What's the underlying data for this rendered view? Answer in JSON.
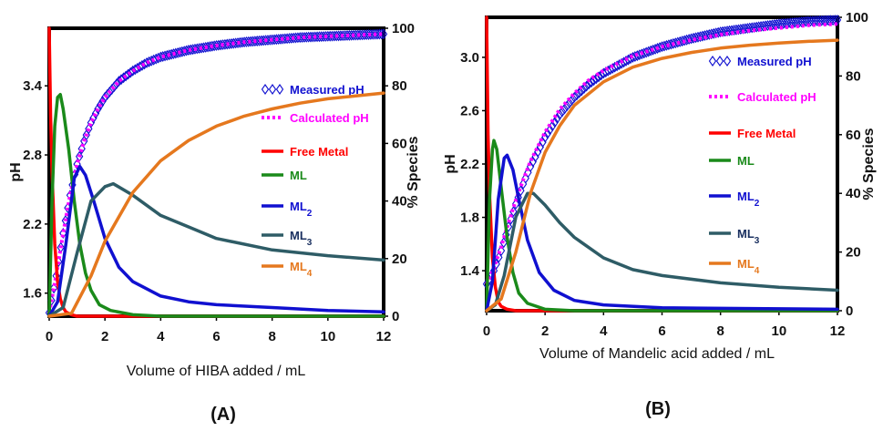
{
  "chart_data": [
    {
      "type": "line",
      "panel_label": "(A)",
      "xlabel": "Volume of HIBA added / mL",
      "ylabel_left": "pH",
      "ylabel_right": "% Species",
      "xlim": [
        0,
        12
      ],
      "xticks": [
        "0",
        "2",
        "4",
        "6",
        "8",
        "10",
        "12"
      ],
      "ylim_left": [
        1.4,
        3.9
      ],
      "yticks_left": [
        "1.6",
        "2.2",
        "2.8",
        "3.4"
      ],
      "ylim_right": [
        0,
        100
      ],
      "yticks_right": [
        "0",
        "20",
        "40",
        "60",
        "80",
        "100"
      ],
      "legend_position": "right",
      "series": [
        {
          "name": "Measured pH",
          "label_main": "Measured pH",
          "axis": "left",
          "style": "diamond-markers",
          "color": "#1010d0",
          "label_color": "#1010d0",
          "x": [
            0,
            0.25,
            0.5,
            0.75,
            1,
            1.25,
            1.5,
            1.75,
            2,
            2.5,
            3,
            3.5,
            4,
            5,
            6,
            7,
            8,
            9,
            10,
            11,
            12
          ],
          "y": [
            1.43,
            1.75,
            2.12,
            2.45,
            2.72,
            2.92,
            3.08,
            3.2,
            3.3,
            3.44,
            3.53,
            3.6,
            3.65,
            3.71,
            3.75,
            3.78,
            3.8,
            3.82,
            3.83,
            3.84,
            3.85
          ]
        },
        {
          "name": "Calculated pH",
          "label_main": "Calculated pH",
          "axis": "left",
          "style": "dotted",
          "color": "#ff00ff",
          "label_color": "#ff00ff",
          "x": [
            0,
            0.25,
            0.5,
            0.75,
            1,
            1.25,
            1.5,
            1.75,
            2,
            2.5,
            3,
            3.5,
            4,
            5,
            6,
            7,
            8,
            9,
            10,
            11,
            12
          ],
          "y": [
            1.43,
            1.75,
            2.12,
            2.45,
            2.72,
            2.92,
            3.08,
            3.2,
            3.3,
            3.44,
            3.53,
            3.6,
            3.65,
            3.71,
            3.75,
            3.78,
            3.8,
            3.82,
            3.83,
            3.84,
            3.85
          ]
        },
        {
          "name": "Free Metal",
          "label_main": "Free Metal",
          "axis": "right",
          "style": "line",
          "color": "#ff0000",
          "label_color": "#ff0000",
          "x": [
            0,
            0.05,
            0.1,
            0.2,
            0.3,
            0.4,
            0.5,
            0.6,
            0.8,
            1,
            12
          ],
          "y": [
            100,
            70,
            50,
            25,
            12,
            6,
            3,
            1.5,
            0.5,
            0,
            0
          ]
        },
        {
          "name": "ML",
          "label_main": "ML",
          "axis": "right",
          "style": "line",
          "color": "#1a8a1a",
          "label_color": "#1a8a1a",
          "x": [
            0,
            0.1,
            0.2,
            0.3,
            0.4,
            0.5,
            0.7,
            0.9,
            1.1,
            1.3,
            1.5,
            1.8,
            2.2,
            3,
            4,
            12
          ],
          "y": [
            0,
            40,
            66,
            76,
            77,
            72,
            58,
            40,
            25,
            15,
            9,
            4,
            2,
            0.5,
            0,
            0
          ]
        },
        {
          "name": "ML2",
          "label_main": "ML",
          "label_sub": "2",
          "axis": "right",
          "style": "line",
          "color": "#1010d0",
          "label_color": "#1010d0",
          "x": [
            0,
            0.3,
            0.6,
            0.9,
            1.1,
            1.3,
            1.6,
            2,
            2.5,
            3,
            4,
            5,
            6,
            8,
            10,
            12
          ],
          "y": [
            0,
            5,
            25,
            48,
            52,
            49,
            40,
            27,
            17,
            12,
            7,
            5,
            4,
            3,
            2,
            1.5
          ]
        },
        {
          "name": "ML3",
          "label_main": "ML",
          "label_sub": "3",
          "axis": "right",
          "style": "line",
          "color": "#2e5c66",
          "label_color": "#1a3060",
          "x": [
            0,
            0.5,
            1,
            1.5,
            2,
            2.3,
            3,
            4,
            5,
            6,
            8,
            10,
            12
          ],
          "y": [
            0,
            3,
            22,
            40,
            45,
            46,
            42,
            35,
            31,
            27,
            23,
            21,
            19.5
          ]
        },
        {
          "name": "ML4",
          "label_main": "ML",
          "label_sub": "4",
          "axis": "right",
          "style": "line",
          "color": "#e5781e",
          "label_color": "#e5781e",
          "x": [
            0,
            0.8,
            1.5,
            2,
            3,
            4,
            5,
            6,
            7,
            8,
            9,
            10,
            11,
            12
          ],
          "y": [
            0,
            1,
            14,
            26,
            43,
            54,
            61,
            66,
            69.5,
            72,
            74,
            75.5,
            76.5,
            77.5
          ]
        }
      ]
    },
    {
      "type": "line",
      "panel_label": "(B)",
      "xlabel": "Volume of Mandelic acid added / mL",
      "ylabel_left": "pH",
      "ylabel_right": "% Species",
      "xlim": [
        0,
        12
      ],
      "xticks": [
        "0",
        "2",
        "4",
        "6",
        "8",
        "10",
        "12"
      ],
      "ylim_left": [
        1.1,
        3.3
      ],
      "yticks_left": [
        "1.4",
        "1.8",
        "2.2",
        "2.6",
        "3.0"
      ],
      "ylim_right": [
        0,
        100
      ],
      "yticks_right": [
        "0",
        "20",
        "40",
        "60",
        "80",
        "100"
      ],
      "legend_position": "right",
      "series": [
        {
          "name": "Measured pH",
          "label_main": "Measured pH",
          "axis": "left",
          "style": "diamond-markers",
          "color": "#1010d0",
          "label_color": "#1010d0",
          "x": [
            0,
            0.25,
            0.5,
            0.75,
            1,
            1.25,
            1.5,
            2,
            2.5,
            3,
            3.5,
            4,
            5,
            6,
            7,
            8,
            9,
            10,
            11,
            12
          ],
          "y": [
            1.3,
            1.4,
            1.55,
            1.73,
            1.9,
            2.05,
            2.18,
            2.4,
            2.57,
            2.7,
            2.8,
            2.88,
            3.0,
            3.08,
            3.14,
            3.19,
            3.22,
            3.25,
            3.27,
            3.28
          ]
        },
        {
          "name": "Calculated pH",
          "label_main": "Calculated pH",
          "axis": "left",
          "style": "dotted",
          "color": "#ff00ff",
          "label_color": "#ff00ff",
          "x": [
            0,
            0.25,
            0.5,
            0.75,
            1,
            1.25,
            1.5,
            2,
            2.5,
            3,
            3.5,
            4,
            5,
            6,
            7,
            8,
            9,
            10,
            11,
            12
          ],
          "y": [
            1.3,
            1.42,
            1.58,
            1.76,
            1.93,
            2.08,
            2.22,
            2.44,
            2.61,
            2.73,
            2.83,
            2.9,
            3.01,
            3.08,
            3.13,
            3.17,
            3.2,
            3.22,
            3.24,
            3.25
          ]
        },
        {
          "name": "Free Metal",
          "label_main": "Free Metal",
          "axis": "right",
          "style": "line",
          "color": "#ff0000",
          "label_color": "#ff0000",
          "x": [
            0,
            0.05,
            0.1,
            0.2,
            0.3,
            0.4,
            0.5,
            0.7,
            1,
            12
          ],
          "y": [
            100,
            60,
            40,
            18,
            8,
            3,
            1.5,
            0.5,
            0,
            0
          ]
        },
        {
          "name": "ML",
          "label_main": "ML",
          "axis": "right",
          "style": "line",
          "color": "#1a8a1a",
          "label_color": "#1a8a1a",
          "x": [
            0,
            0.1,
            0.2,
            0.25,
            0.35,
            0.5,
            0.7,
            0.9,
            1.1,
            1.4,
            2,
            3,
            12
          ],
          "y": [
            0,
            38,
            55,
            58,
            55,
            42,
            25,
            13,
            6,
            2.5,
            0.5,
            0,
            0
          ]
        },
        {
          "name": "ML2",
          "label_main": "ML",
          "label_sub": "2",
          "axis": "right",
          "style": "line",
          "color": "#1010d0",
          "label_color": "#1010d0",
          "x": [
            0,
            0.2,
            0.4,
            0.6,
            0.7,
            0.9,
            1.1,
            1.4,
            1.8,
            2.3,
            3,
            4,
            6,
            12
          ],
          "y": [
            0,
            10,
            38,
            52,
            53,
            48,
            38,
            24,
            13,
            7,
            3.5,
            2,
            1,
            0.5
          ]
        },
        {
          "name": "ML3",
          "label_main": "ML",
          "label_sub": "3",
          "axis": "right",
          "style": "line",
          "color": "#2e5c66",
          "label_color": "#1a3060",
          "x": [
            0,
            0.3,
            0.6,
            1,
            1.4,
            1.6,
            2,
            2.5,
            3,
            4,
            5,
            6,
            8,
            10,
            12
          ],
          "y": [
            0,
            2,
            12,
            32,
            40,
            40,
            36,
            30,
            25,
            18,
            14,
            12,
            9.5,
            8,
            7
          ]
        },
        {
          "name": "ML4",
          "label_main": "ML",
          "label_sub": "4",
          "axis": "right",
          "style": "line",
          "color": "#e5781e",
          "label_color": "#e5781e",
          "x": [
            0,
            0.5,
            1,
            1.5,
            2,
            2.5,
            3,
            4,
            5,
            6,
            7,
            8,
            9,
            10,
            11,
            12
          ],
          "y": [
            0,
            4,
            20,
            40,
            54,
            63,
            70,
            78,
            83,
            86,
            88,
            89.5,
            90.5,
            91.2,
            91.8,
            92.2
          ]
        }
      ]
    }
  ]
}
